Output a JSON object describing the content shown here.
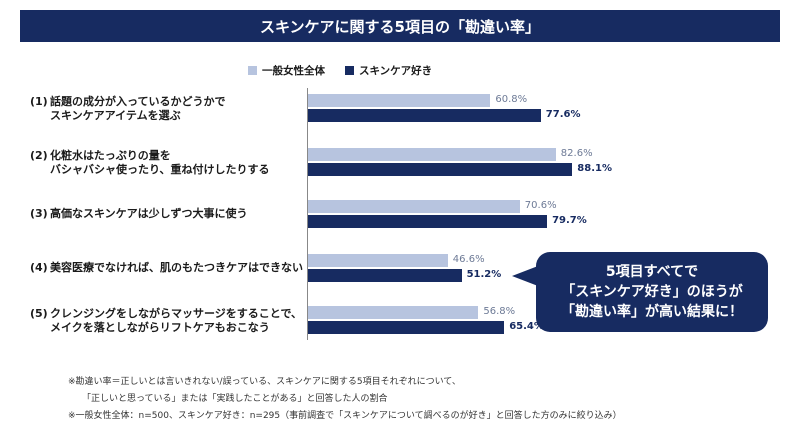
{
  "title": "スキンケアに関する5項目の「勘違い率」",
  "legend": [
    {
      "label": "一般女性全体",
      "color": "#b7c4df"
    },
    {
      "label": "スキンケア好き",
      "color": "#172b61"
    }
  ],
  "chart_data": {
    "type": "bar",
    "orientation": "horizontal",
    "categories": [
      {
        "num": "(1)",
        "line1": "話題の成分が入っているかどうかで",
        "line2": "スキンケアアイテムを選ぶ"
      },
      {
        "num": "(2)",
        "line1": "化粧水はたっぷりの量を",
        "line2": "バシャバシャ使ったり、重ね付けしたりする"
      },
      {
        "num": "(3)",
        "line1": "高価なスキンケアは少しずつ大事に使う",
        "line2": ""
      },
      {
        "num": "(4)",
        "line1": "美容医療でなければ、肌のもたつきケアはできない",
        "line2": ""
      },
      {
        "num": "(5)",
        "line1": "クレンジングをしながらマッサージをすることで、",
        "line2": "メイクを落としながらリフトケアもおこなう"
      }
    ],
    "series": [
      {
        "name": "一般女性全体",
        "values": [
          60.8,
          82.6,
          70.6,
          46.6,
          56.8
        ],
        "labels": [
          "60.8%",
          "82.6%",
          "70.6%",
          "46.6%",
          "56.8%"
        ]
      },
      {
        "name": "スキンケア好き",
        "values": [
          77.6,
          88.1,
          79.7,
          51.2,
          65.4
        ],
        "labels": [
          "77.6%",
          "88.1%",
          "79.7%",
          "51.2%",
          "65.4%"
        ]
      }
    ],
    "xlim": [
      0,
      100
    ]
  },
  "callout": {
    "line1": "5項目すべてで",
    "line2": "「スキンケア好き」のほうが",
    "line3": "「勘違い率」が高い結果に！"
  },
  "notes": {
    "line1": "※勘違い率＝正しいとは言いきれない/誤っている、スキンケアに関する5項目それぞれについて、",
    "line2": "「正しいと思っている」または「実践したことがある」と回答した人の割合",
    "line3": "※一般女性全体：n=500、スキンケア好き：n=295（事前調査で「スキンケアについて調べるのが好き」と回答した方のみに絞り込み）"
  }
}
